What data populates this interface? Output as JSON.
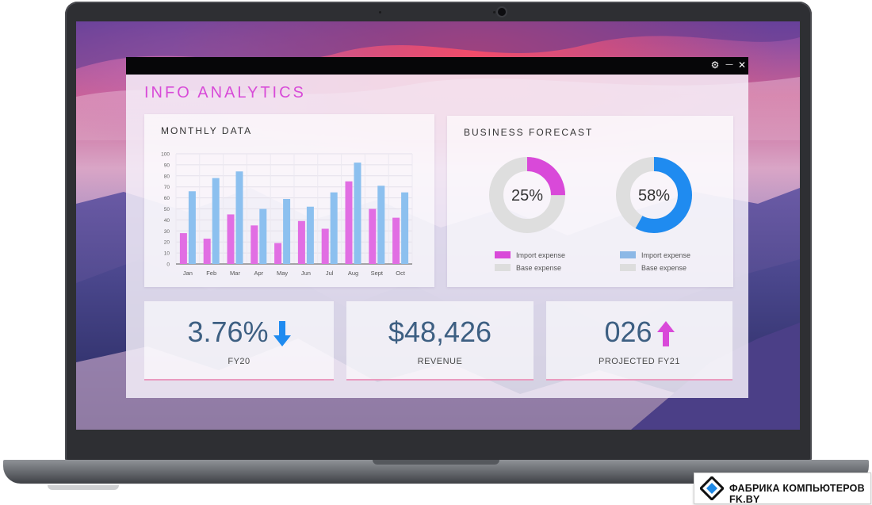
{
  "window": {
    "title": "INFO ANALYTICS",
    "controls": {
      "settings": "⚙",
      "minimize": "—",
      "close": "✕"
    }
  },
  "monthly_card": {
    "title": "MONTHLY DATA"
  },
  "forecast_card": {
    "title": "BUSINESS FORECAST",
    "donuts": [
      {
        "label": "25%",
        "value": 25,
        "color": "#d949d9",
        "legend": [
          "Import expense",
          "Base expense"
        ]
      },
      {
        "label": "58%",
        "value": 58,
        "color": "#1f8bf0",
        "legend": [
          "Import expense",
          "Base expense"
        ]
      }
    ],
    "legend_colors": {
      "pink": "#d949d9",
      "blue": "#8cb8e6",
      "base": "#dddddd"
    }
  },
  "kpis": [
    {
      "value": "3.76%",
      "label": "FY20",
      "trend": "down",
      "color": "#1f8bf0"
    },
    {
      "value": "$48,426",
      "label": "REVENUE",
      "trend": "none"
    },
    {
      "value": "026",
      "label": "PROJECTED FY21",
      "trend": "up",
      "color": "#d949d9"
    }
  ],
  "chart_data": {
    "type": "bar",
    "title": "MONTHLY DATA",
    "categories": [
      "Jan",
      "Feb",
      "Mar",
      "Apr",
      "May",
      "Jun",
      "Jul",
      "Aug",
      "Sept",
      "Oct"
    ],
    "series": [
      {
        "values": [
          28,
          23,
          45,
          35,
          19,
          39,
          32,
          75,
          50,
          42
        ],
        "color": "#e16ee3"
      },
      {
        "values": [
          66,
          78,
          84,
          50,
          59,
          52,
          65,
          92,
          71,
          65
        ],
        "color": "#8cc0ef"
      }
    ],
    "ylim": [
      0,
      100
    ],
    "yticks": [
      "0",
      "10",
      "20",
      "30",
      "40",
      "50",
      "60",
      "70",
      "80",
      "90",
      "100"
    ],
    "grid": true
  },
  "brand": {
    "text": "ФАБРИКА КОМПЬЮТЕРОВ FK.BY"
  }
}
